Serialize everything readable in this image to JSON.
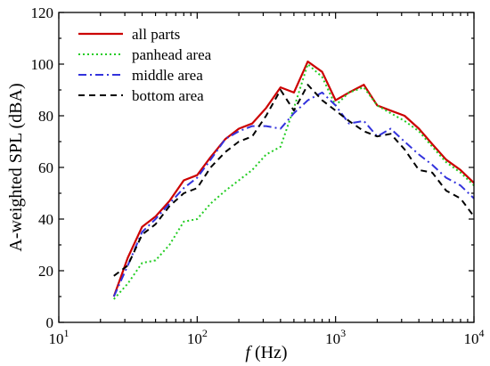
{
  "chart_data": {
    "type": "line",
    "title": "",
    "xlabel": {
      "italic": "f",
      "rest": " (Hz)"
    },
    "ylabel": "A-weighted SPL (dBA)",
    "xscale": "log",
    "xlim": [
      10,
      10000
    ],
    "ylim": [
      0,
      120
    ],
    "grid": false,
    "legend": "top-left",
    "x_ticks": [
      {
        "value": 10,
        "base": "10",
        "exp": "1"
      },
      {
        "value": 100,
        "base": "10",
        "exp": "2"
      },
      {
        "value": 1000,
        "base": "10",
        "exp": "3"
      },
      {
        "value": 10000,
        "base": "10",
        "exp": "4"
      }
    ],
    "y_ticks": [
      "0",
      "20",
      "40",
      "60",
      "80",
      "100",
      "120"
    ],
    "x": [
      25,
      31.5,
      40,
      50,
      63,
      80,
      100,
      125,
      160,
      200,
      250,
      315,
      400,
      500,
      630,
      800,
      1000,
      1250,
      1600,
      2000,
      2500,
      3150,
      4000,
      5000,
      6300,
      8000,
      10000
    ],
    "series": [
      {
        "name": "all parts",
        "color": "#cc0000",
        "dash": "solid",
        "values": [
          10,
          25,
          37,
          41,
          47,
          55,
          57,
          64,
          71,
          75,
          77,
          83,
          91,
          89,
          101,
          97,
          86,
          89,
          92,
          84,
          82,
          80,
          75,
          69,
          63,
          59,
          54
        ]
      },
      {
        "name": "panhead area",
        "color": "#22cc22",
        "dash": "dotted",
        "values": [
          9,
          15,
          23,
          24,
          30,
          39,
          40,
          46,
          51,
          55,
          59,
          65,
          68,
          83,
          100,
          95,
          84,
          89,
          91,
          84,
          81,
          78,
          74,
          68,
          62,
          58,
          53
        ]
      },
      {
        "name": "middle area",
        "color": "#3333dd",
        "dash": "dashdot",
        "values": [
          10,
          22,
          35,
          40,
          46,
          52,
          56,
          63,
          71,
          74,
          76,
          76,
          75,
          81,
          86,
          89,
          84,
          77,
          78,
          72,
          75,
          70,
          65,
          61,
          56,
          53,
          48
        ]
      },
      {
        "name": "bottom area",
        "color": "#000000",
        "dash": "dashed",
        "values": [
          18,
          22,
          34,
          38,
          45,
          50,
          52,
          60,
          66,
          70,
          72,
          80,
          90,
          82,
          92,
          86,
          82,
          78,
          74,
          72,
          73,
          67,
          59,
          58,
          51,
          48,
          41
        ]
      }
    ]
  }
}
